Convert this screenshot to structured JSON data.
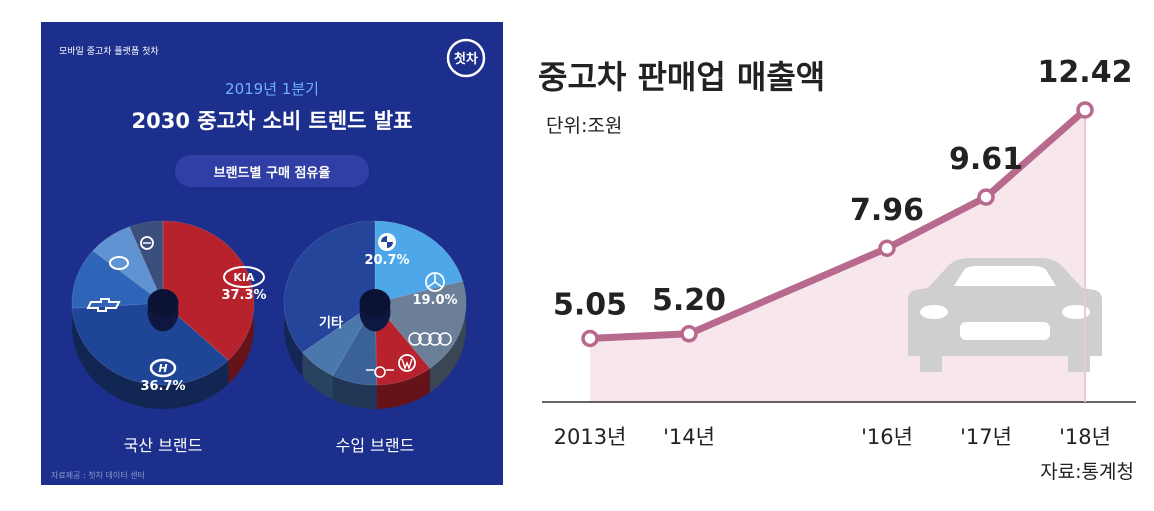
{
  "infographic": {
    "platform_label": "모바일 중고차 플랫폼 첫차",
    "logo_text": "첫차",
    "period": "2019년 1분기",
    "title": "2030 중고차 소비 트렌드 발표",
    "subtitle": "브랜드별 구매 점유율",
    "source": "자료제공 : 첫차 데이터 센터"
  },
  "line_chart": {
    "title": "중고차 판매업 매출액",
    "unit_label": "단위:조원",
    "source": "자료:통계청"
  },
  "colors": {
    "panel_bg": "#1d2f8c",
    "kia_red": "#b8222d",
    "hyundai_blue": "#1f4596",
    "chevrolet_blue": "#2f65b8",
    "renault_blue": "#5f93d2",
    "ssangyong_gray": "#3b4f7c",
    "bmw_sky": "#4ea7e8",
    "benz_gray": "#6b7f98",
    "audi_red": "#b8222d",
    "vw_blue": "#3a6299",
    "mini_blue": "#4a78ad",
    "other_blue": "#24459a",
    "line_color": "#b86a8e",
    "area_fill": "#f7e6ec",
    "car_gray": "#cfcfcf"
  },
  "chart_data": [
    {
      "type": "pie",
      "title": "국산 브랜드",
      "slices": [
        {
          "name": "KIA",
          "value": 37.3,
          "label": "37.3%",
          "icon": "kia-logo"
        },
        {
          "name": "Hyundai",
          "value": 36.7,
          "label": "36.7%",
          "icon": "hyundai-logo"
        },
        {
          "name": "Chevrolet",
          "value": 12.0,
          "label": "",
          "icon": "chevrolet-logo"
        },
        {
          "name": "Renault Samsung",
          "value": 8.0,
          "label": "",
          "icon": "renault-samsung-logo"
        },
        {
          "name": "SsangYong",
          "value": 6.0,
          "label": "",
          "icon": "ssangyong-logo"
        }
      ]
    },
    {
      "type": "pie",
      "title": "수입 브랜드",
      "slices": [
        {
          "name": "BMW",
          "value": 20.7,
          "label": "20.7%",
          "icon": "bmw-logo"
        },
        {
          "name": "Mercedes-Benz",
          "value": 19.0,
          "label": "19.0%",
          "icon": "mercedes-logo"
        },
        {
          "name": "Audi",
          "value": 10.0,
          "label": "",
          "icon": "audi-logo"
        },
        {
          "name": "Volkswagen",
          "value": 8.0,
          "label": "",
          "icon": "volkswagen-logo"
        },
        {
          "name": "MINI",
          "value": 7.0,
          "label": "",
          "icon": "mini-logo"
        },
        {
          "name": "기타",
          "value": 35.3,
          "label": "기타",
          "icon": ""
        }
      ]
    },
    {
      "type": "line",
      "title": "중고차 판매업 매출액",
      "ylabel": "단위:조원",
      "x": [
        2013,
        2014,
        2016,
        2017,
        2018
      ],
      "tick_labels": [
        "2013년",
        "'14년",
        "'16년",
        "'17년",
        "'18년"
      ],
      "values": [
        5.05,
        5.2,
        7.96,
        9.61,
        12.42
      ],
      "value_labels": [
        "5.05",
        "5.20",
        "7.96",
        "9.61",
        "12.42"
      ],
      "ylim": [
        3.0,
        13.0
      ],
      "grid": false,
      "area_fill": true
    }
  ]
}
